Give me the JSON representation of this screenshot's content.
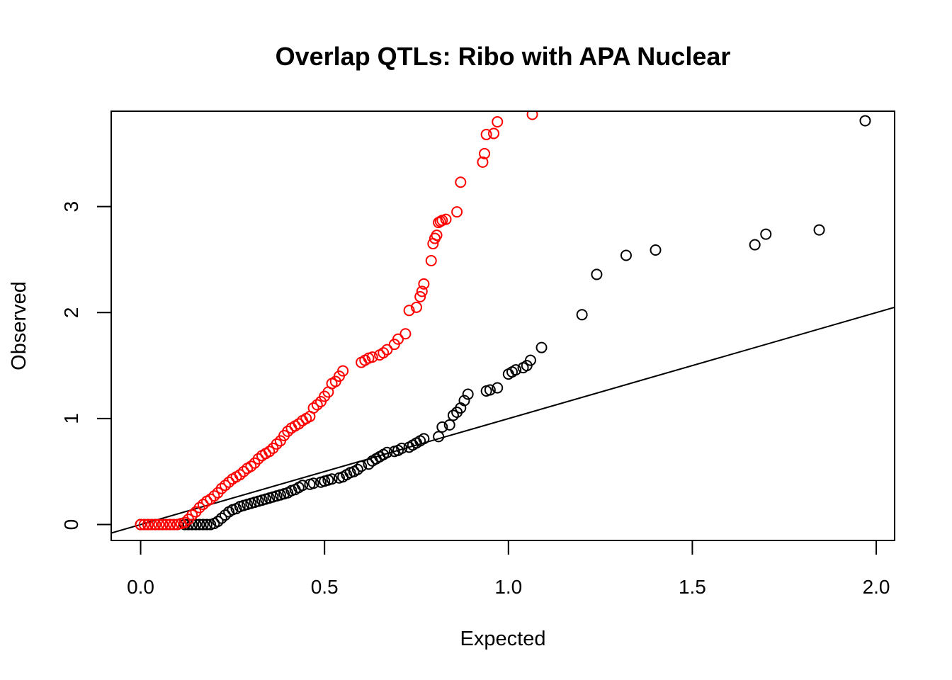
{
  "chart_data": {
    "type": "scatter",
    "title": "Overlap QTLs: Ribo with APA Nuclear",
    "xlabel": "Expected",
    "ylabel": "Observed",
    "xlim": [
      -0.08,
      2.05
    ],
    "ylim": [
      -0.15,
      3.9
    ],
    "x_ticks": [
      "0.0",
      "0.5",
      "1.0",
      "1.5",
      "2.0"
    ],
    "y_ticks": [
      "0",
      "1",
      "2",
      "3"
    ],
    "reference_line": {
      "intercept": 0,
      "slope": 1
    },
    "grid": false,
    "legend": "none",
    "series": [
      {
        "color": "#ff0000",
        "x": [
          0.0,
          0.01,
          0.02,
          0.03,
          0.04,
          0.05,
          0.06,
          0.07,
          0.08,
          0.09,
          0.1,
          0.11,
          0.12,
          0.13,
          0.14,
          0.15,
          0.16,
          0.17,
          0.18,
          0.19,
          0.2,
          0.21,
          0.22,
          0.23,
          0.24,
          0.25,
          0.26,
          0.27,
          0.28,
          0.29,
          0.3,
          0.31,
          0.32,
          0.33,
          0.34,
          0.35,
          0.36,
          0.37,
          0.38,
          0.39,
          0.4,
          0.41,
          0.42,
          0.43,
          0.44,
          0.45,
          0.46,
          0.47,
          0.48,
          0.49,
          0.5,
          0.51,
          0.52,
          0.53,
          0.54,
          0.55,
          0.6,
          0.61,
          0.62,
          0.63,
          0.65,
          0.66,
          0.67,
          0.69,
          0.7,
          0.72,
          0.73,
          0.75,
          0.76,
          0.765,
          0.77,
          0.79,
          0.795,
          0.8,
          0.805,
          0.81,
          0.815,
          0.82,
          0.83,
          0.86,
          0.87,
          0.93,
          0.935,
          0.94,
          0.96,
          0.97,
          1.065
        ],
        "y": [
          0.0,
          0.0,
          0.0,
          0.0,
          0.0,
          0.0,
          0.0,
          0.0,
          0.0,
          0.0,
          0.0,
          0.01,
          0.02,
          0.05,
          0.09,
          0.12,
          0.16,
          0.19,
          0.22,
          0.24,
          0.27,
          0.3,
          0.34,
          0.37,
          0.4,
          0.43,
          0.45,
          0.47,
          0.5,
          0.53,
          0.55,
          0.58,
          0.62,
          0.65,
          0.67,
          0.69,
          0.72,
          0.76,
          0.79,
          0.84,
          0.88,
          0.91,
          0.93,
          0.95,
          0.98,
          1.0,
          1.02,
          1.1,
          1.13,
          1.16,
          1.21,
          1.25,
          1.33,
          1.35,
          1.4,
          1.45,
          1.53,
          1.55,
          1.57,
          1.58,
          1.6,
          1.62,
          1.65,
          1.7,
          1.75,
          1.8,
          2.02,
          2.05,
          2.15,
          2.2,
          2.27,
          2.49,
          2.65,
          2.7,
          2.73,
          2.85,
          2.86,
          2.87,
          2.88,
          2.95,
          3.23,
          3.42,
          3.5,
          3.68,
          3.69,
          3.8,
          3.87
        ]
      },
      {
        "color": "#000000",
        "x": [
          0.0,
          0.02,
          0.04,
          0.06,
          0.08,
          0.1,
          0.12,
          0.13,
          0.14,
          0.15,
          0.16,
          0.17,
          0.18,
          0.19,
          0.2,
          0.21,
          0.22,
          0.23,
          0.24,
          0.25,
          0.26,
          0.27,
          0.28,
          0.29,
          0.3,
          0.31,
          0.32,
          0.33,
          0.34,
          0.35,
          0.36,
          0.37,
          0.38,
          0.39,
          0.4,
          0.41,
          0.42,
          0.43,
          0.44,
          0.46,
          0.47,
          0.49,
          0.5,
          0.51,
          0.52,
          0.54,
          0.55,
          0.56,
          0.57,
          0.58,
          0.59,
          0.6,
          0.62,
          0.63,
          0.64,
          0.65,
          0.66,
          0.67,
          0.69,
          0.7,
          0.71,
          0.73,
          0.74,
          0.75,
          0.76,
          0.77,
          0.81,
          0.82,
          0.84,
          0.85,
          0.86,
          0.87,
          0.88,
          0.89,
          0.94,
          0.95,
          0.97,
          1.0,
          1.01,
          1.02,
          1.04,
          1.05,
          1.06,
          1.09,
          1.2,
          1.24,
          1.32,
          1.4,
          1.67,
          1.7,
          1.845,
          1.97
        ],
        "y": [
          0.0,
          0.0,
          0.0,
          0.0,
          0.0,
          0.0,
          0.0,
          0.0,
          0.0,
          0.0,
          0.0,
          0.0,
          0.0,
          0.0,
          0.01,
          0.03,
          0.06,
          0.09,
          0.12,
          0.14,
          0.15,
          0.17,
          0.18,
          0.19,
          0.2,
          0.21,
          0.22,
          0.23,
          0.24,
          0.25,
          0.26,
          0.27,
          0.28,
          0.29,
          0.3,
          0.32,
          0.33,
          0.35,
          0.37,
          0.38,
          0.39,
          0.4,
          0.41,
          0.42,
          0.43,
          0.44,
          0.45,
          0.47,
          0.49,
          0.5,
          0.52,
          0.55,
          0.57,
          0.6,
          0.62,
          0.64,
          0.66,
          0.68,
          0.69,
          0.7,
          0.72,
          0.73,
          0.75,
          0.77,
          0.79,
          0.81,
          0.83,
          0.92,
          0.94,
          1.03,
          1.06,
          1.1,
          1.17,
          1.23,
          1.26,
          1.27,
          1.29,
          1.42,
          1.44,
          1.46,
          1.48,
          1.5,
          1.55,
          1.67,
          1.98,
          2.36,
          2.54,
          2.59,
          2.64,
          2.74,
          2.78,
          3.81
        ]
      }
    ]
  }
}
